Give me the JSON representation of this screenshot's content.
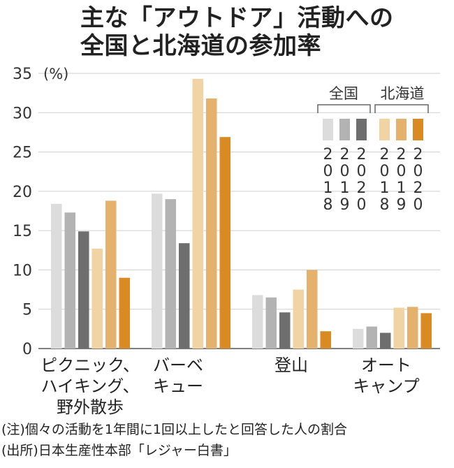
{
  "chart_data": {
    "type": "bar",
    "title": [
      "主な「アウトドア」活動への",
      "全国と北海道の参加率"
    ],
    "ylabel": "(%)",
    "ylim": [
      0,
      35
    ],
    "yticks": [
      0,
      5,
      10,
      15,
      20,
      25,
      30,
      35
    ],
    "grid": true,
    "categories": [
      [
        "ピクニック、",
        "ハイキング、",
        "野外散歩"
      ],
      [
        "バーベ",
        "キュー"
      ],
      [
        "登山"
      ],
      [
        "オート",
        "キャンプ"
      ]
    ],
    "legend": {
      "groups": [
        "全国",
        "北海道"
      ],
      "years": [
        "2018",
        "2019",
        "2020"
      ],
      "placement": "top-right"
    },
    "series": [
      {
        "values": [
          18.4,
          19.7,
          6.8,
          2.5
        ],
        "color": "#dcdcdc"
      },
      {
        "values": [
          17.3,
          19.0,
          6.5,
          2.8
        ],
        "color": "#b3b3b3"
      },
      {
        "values": [
          14.9,
          13.4,
          4.6,
          2.0
        ],
        "color": "#6e6e6e"
      },
      {
        "values": [
          12.7,
          34.3,
          7.5,
          5.2
        ],
        "color": "#f2d3a4"
      },
      {
        "values": [
          18.8,
          31.8,
          10.0,
          5.3
        ],
        "color": "#e4b26c"
      },
      {
        "values": [
          9.0,
          26.9,
          2.2,
          4.5
        ],
        "color": "#d98a22"
      }
    ]
  },
  "notes": [
    "(注)個々の活動を1年間に1回以上したと回答した人の割合",
    "(出所)日本生産性本部「レジャー白書」"
  ]
}
